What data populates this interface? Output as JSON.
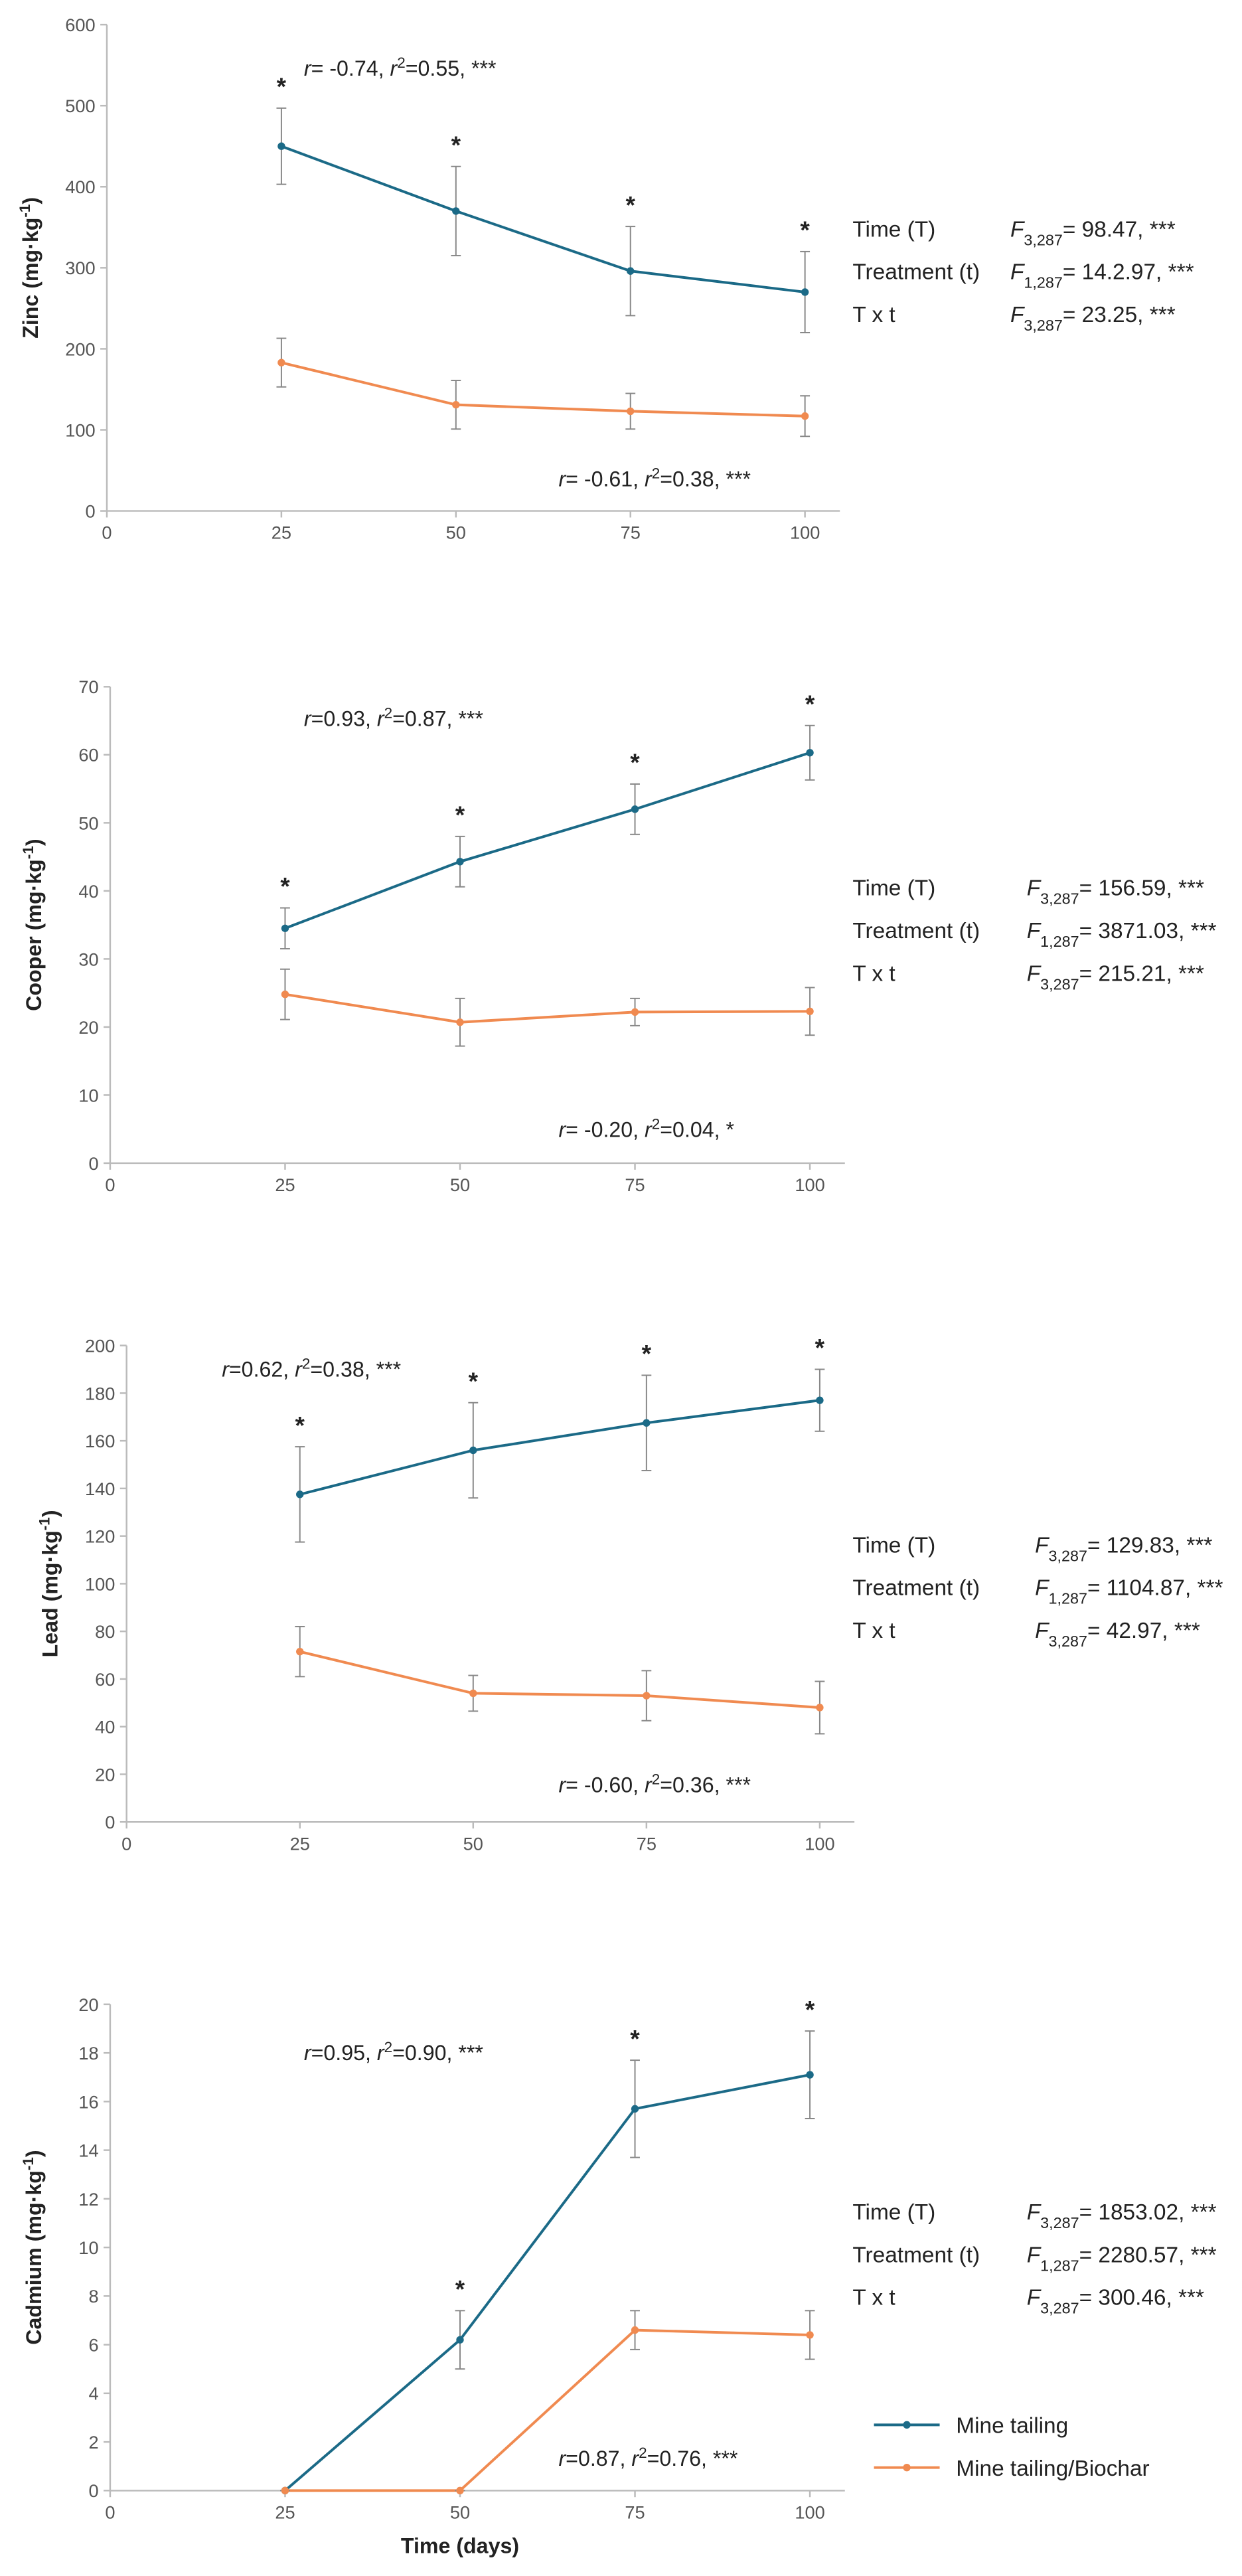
{
  "chart_data": [
    {
      "type": "line",
      "ylabel": [
        {
          "text": "Zinc (mg·kg"
        },
        {
          "text": "-1",
          "style": "sup"
        },
        {
          "text": ")"
        }
      ],
      "x": [
        25,
        50,
        75,
        100
      ],
      "xlim": [
        0,
        105
      ],
      "xticks": [
        0,
        25,
        50,
        75,
        100
      ],
      "ylim": [
        0,
        600
      ],
      "yticks": [
        0,
        100,
        200,
        300,
        400,
        500,
        600
      ],
      "grid": false,
      "series": [
        {
          "color": "#1b6a87",
          "values": [
            450,
            370,
            296,
            270
          ],
          "errors": [
            47,
            55,
            55,
            50
          ]
        },
        {
          "color": "#f08a50",
          "values": [
            183,
            131,
            123,
            117
          ],
          "errors": [
            30,
            30,
            22,
            25
          ]
        }
      ],
      "significance": [
        "*",
        "*",
        "*",
        "*"
      ],
      "annotations": [
        [
          {
            "text": "r",
            "style": "italic"
          },
          {
            "text": "= -0.74, "
          },
          {
            "text": "r",
            "style": "italic"
          },
          {
            "text": "2",
            "style": "sup"
          },
          {
            "text": "=0.55, ***"
          }
        ],
        [
          {
            "text": "r",
            "style": "italic"
          },
          {
            "text": "= -0.61, "
          },
          {
            "text": "r",
            "style": "italic"
          },
          {
            "text": "2",
            "style": "sup"
          },
          {
            "text": "=0.38, ***"
          }
        ]
      ],
      "stats": [
        {
          "label": "Time (T)",
          "value": [
            {
              "text": "F",
              "style": "italic"
            },
            {
              "text": "3,287",
              "style": "sub"
            },
            {
              "text": "= 98.47, ***"
            }
          ]
        },
        {
          "label": "Treatment (t)",
          "value": [
            {
              "text": "F",
              "style": "italic"
            },
            {
              "text": "1,287",
              "style": "sub"
            },
            {
              "text": "= 14.2.97, ***"
            }
          ]
        },
        {
          "label": "T x t",
          "value": [
            {
              "text": "F",
              "style": "italic"
            },
            {
              "text": "3,287",
              "style": "sub"
            },
            {
              "text": "= 23.25, ***"
            }
          ]
        }
      ]
    },
    {
      "type": "line",
      "ylabel": [
        {
          "text": "Cooper (mg·kg"
        },
        {
          "text": "-1",
          "style": "sup"
        },
        {
          "text": ")"
        }
      ],
      "x": [
        25,
        50,
        75,
        100
      ],
      "xlim": [
        0,
        105
      ],
      "xticks": [
        0,
        25,
        50,
        75,
        100
      ],
      "ylim": [
        0,
        70
      ],
      "yticks": [
        0,
        10,
        20,
        30,
        40,
        50,
        60,
        70
      ],
      "grid": false,
      "series": [
        {
          "color": "#1b6a87",
          "values": [
            34.5,
            44.3,
            52,
            60.3
          ],
          "errors": [
            3,
            3.7,
            3.7,
            4
          ]
        },
        {
          "color": "#f08a50",
          "values": [
            24.8,
            20.7,
            22.2,
            22.3
          ],
          "errors": [
            3.7,
            3.5,
            2,
            3.5
          ]
        }
      ],
      "significance": [
        "*",
        "*",
        "*",
        "*"
      ],
      "annotations": [
        [
          {
            "text": "r",
            "style": "italic"
          },
          {
            "text": "=0.93, "
          },
          {
            "text": "r",
            "style": "italic"
          },
          {
            "text": "2",
            "style": "sup"
          },
          {
            "text": "=0.87, ***"
          }
        ],
        [
          {
            "text": "r",
            "style": "italic"
          },
          {
            "text": "= -0.20, "
          },
          {
            "text": "r",
            "style": "italic"
          },
          {
            "text": "2",
            "style": "sup"
          },
          {
            "text": "=0.04, *"
          }
        ]
      ],
      "stats": [
        {
          "label": "Time (T)",
          "value": [
            {
              "text": "F",
              "style": "italic"
            },
            {
              "text": "3,287",
              "style": "sub"
            },
            {
              "text": "= 156.59, ***"
            }
          ]
        },
        {
          "label": "Treatment (t)",
          "value": [
            {
              "text": "F",
              "style": "italic"
            },
            {
              "text": "1,287",
              "style": "sub"
            },
            {
              "text": "= 3871.03, ***"
            }
          ]
        },
        {
          "label": "T x t",
          "value": [
            {
              "text": "F",
              "style": "italic"
            },
            {
              "text": "3,287",
              "style": "sub"
            },
            {
              "text": "= 215.21, ***"
            }
          ]
        }
      ]
    },
    {
      "type": "line",
      "ylabel": [
        {
          "text": "Lead (mg·kg"
        },
        {
          "text": "-1",
          "style": "sup"
        },
        {
          "text": ")"
        }
      ],
      "x": [
        25,
        50,
        75,
        100
      ],
      "xlim": [
        0,
        105
      ],
      "xticks": [
        0,
        25,
        50,
        75,
        100
      ],
      "ylim": [
        0,
        200
      ],
      "yticks": [
        0,
        20,
        40,
        60,
        80,
        100,
        120,
        140,
        160,
        180,
        200
      ],
      "grid": false,
      "series": [
        {
          "color": "#1b6a87",
          "values": [
            137.5,
            156,
            167.5,
            177
          ],
          "errors": [
            20,
            20,
            20,
            13
          ]
        },
        {
          "color": "#f08a50",
          "values": [
            71.5,
            54,
            53,
            48
          ],
          "errors": [
            10.5,
            7.5,
            10.5,
            11
          ]
        }
      ],
      "significance": [
        "*",
        "*",
        "*",
        "*"
      ],
      "annotations": [
        [
          {
            "text": "r",
            "style": "italic"
          },
          {
            "text": "=0.62, "
          },
          {
            "text": "r",
            "style": "italic"
          },
          {
            "text": "2",
            "style": "sup"
          },
          {
            "text": "=0.38, ***"
          }
        ],
        [
          {
            "text": "r",
            "style": "italic"
          },
          {
            "text": "= -0.60, "
          },
          {
            "text": "r",
            "style": "italic"
          },
          {
            "text": "2",
            "style": "sup"
          },
          {
            "text": "=0.36, ***"
          }
        ]
      ],
      "stats": [
        {
          "label": "Time (T)",
          "value": [
            {
              "text": "F",
              "style": "italic"
            },
            {
              "text": "3,287",
              "style": "sub"
            },
            {
              "text": "= 129.83, ***"
            }
          ]
        },
        {
          "label": "Treatment (t)",
          "value": [
            {
              "text": "F",
              "style": "italic"
            },
            {
              "text": "1,287",
              "style": "sub"
            },
            {
              "text": "= 1104.87, ***"
            }
          ]
        },
        {
          "label": "T x t",
          "value": [
            {
              "text": "F",
              "style": "italic"
            },
            {
              "text": "3,287",
              "style": "sub"
            },
            {
              "text": "= 42.97, ***"
            }
          ]
        }
      ]
    },
    {
      "type": "line",
      "ylabel": [
        {
          "text": "Cadmium (mg·kg"
        },
        {
          "text": "-1",
          "style": "sup"
        },
        {
          "text": ")"
        }
      ],
      "xlabel": "Time (days)",
      "x": [
        25,
        50,
        75,
        100
      ],
      "xlim": [
        0,
        105
      ],
      "xticks": [
        0,
        25,
        50,
        75,
        100
      ],
      "ylim": [
        0,
        20
      ],
      "yticks": [
        0,
        2,
        4,
        6,
        8,
        10,
        12,
        14,
        16,
        18,
        20
      ],
      "grid": false,
      "series": [
        {
          "name": "Mine tailing",
          "color": "#1b6a87",
          "values": [
            0,
            6.2,
            15.7,
            17.1
          ],
          "errors": [
            0,
            1.2,
            2.0,
            1.8
          ]
        },
        {
          "name": "Mine tailing/Biochar",
          "color": "#f08a50",
          "values": [
            0,
            0,
            6.6,
            6.4
          ],
          "errors": [
            0,
            0,
            0.8,
            1.0
          ]
        }
      ],
      "significance": [
        null,
        "*",
        "*",
        "*"
      ],
      "annotations": [
        [
          {
            "text": "r",
            "style": "italic"
          },
          {
            "text": "=0.95, "
          },
          {
            "text": "r",
            "style": "italic"
          },
          {
            "text": "2",
            "style": "sup"
          },
          {
            "text": "=0.90, ***"
          }
        ],
        [
          {
            "text": "r",
            "style": "italic"
          },
          {
            "text": "=0.87, "
          },
          {
            "text": "r",
            "style": "italic"
          },
          {
            "text": "2",
            "style": "sup"
          },
          {
            "text": "=0.76, ***"
          }
        ]
      ],
      "stats": [
        {
          "label": "Time (T)",
          "value": [
            {
              "text": "F",
              "style": "italic"
            },
            {
              "text": "3,287",
              "style": "sub"
            },
            {
              "text": "= 1853.02, ***"
            }
          ]
        },
        {
          "label": "Treatment (t)",
          "value": [
            {
              "text": "F",
              "style": "italic"
            },
            {
              "text": "1,287",
              "style": "sub"
            },
            {
              "text": "= 2280.57, ***"
            }
          ]
        },
        {
          "label": "T x t",
          "value": [
            {
              "text": "F",
              "style": "italic"
            },
            {
              "text": "3,287",
              "style": "sub"
            },
            {
              "text": "= 300.46, ***"
            }
          ]
        }
      ],
      "legend": "bottom-right"
    }
  ]
}
